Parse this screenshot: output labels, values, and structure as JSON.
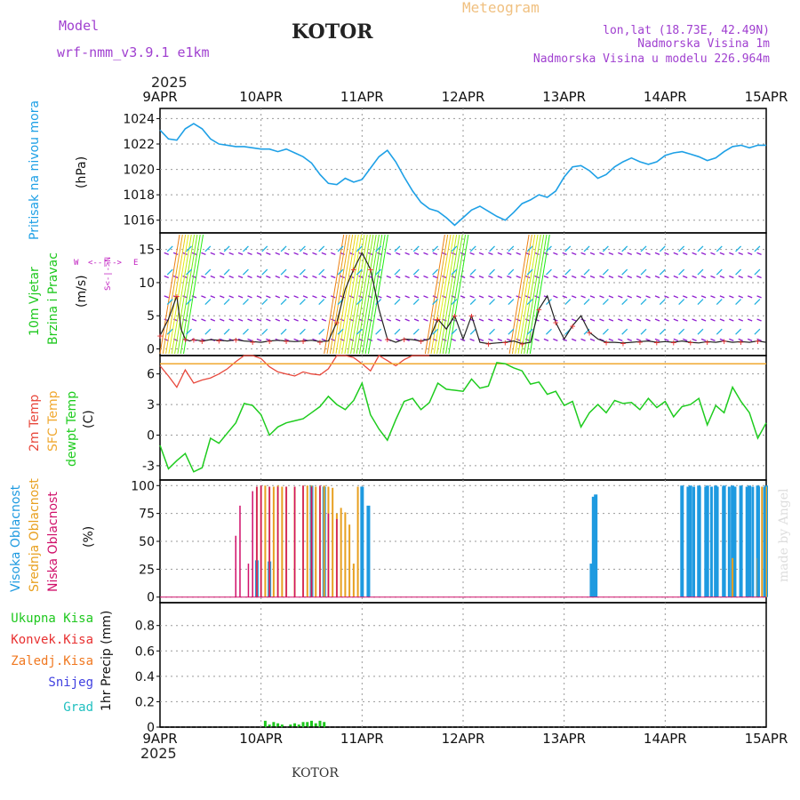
{
  "header": {
    "model_label": "Model",
    "model_name": "wrf-nmm_v3.9.1  e1km",
    "station": "KOTOR",
    "product": "Meteogram",
    "coords": "lon,lat (18.73E, 42.49N)",
    "elevation": "Nadmorska Visina 1m",
    "model_elevation": "Nadmorska Visina u modelu 226.964m",
    "footer_station": "KOTOR",
    "credit": "made by Angel",
    "year": "2025"
  },
  "colors": {
    "pressure": "#1ea0e6",
    "temp2m": "#e8483c",
    "sfc_temp": "#f0a830",
    "dewpt": "#1ecc1e",
    "high_cloud": "#1e9ae0",
    "mid_cloud": "#e8a020",
    "low_cloud": "#d0106a",
    "total_precip": "#1ec81e",
    "conv_precip": "#e83030",
    "frozen_precip": "#f07820",
    "snow": "#4040e0",
    "graupel": "#20c0c0",
    "wind_axis_label": "#c020c0",
    "model_text": "#a040d0",
    "meteogram_text": "#f0c080"
  },
  "time_axis": {
    "top_labels": [
      "9APR",
      "10APR",
      "11APR",
      "12APR",
      "13APR",
      "14APR",
      "15APR"
    ],
    "bottom_labels": [
      "9APR",
      "10APR",
      "11APR",
      "12APR",
      "13APR",
      "14APR",
      "15APR"
    ]
  },
  "panels": {
    "pressure": {
      "title": "Pritisak na nivou mora",
      "unit": "(hPa)"
    },
    "wind": {
      "title1": "10m Vjetar",
      "title2": "Brzina i Pravac",
      "unit": "(m/s)",
      "compass_w": "W",
      "compass_e": "E",
      "compass_ns": "S<-|->N"
    },
    "temp": {
      "title1": "2m Temp",
      "title2": "SFC Temp",
      "title3": "dewpt Temp",
      "unit": "(C)"
    },
    "cloud": {
      "title1": "Visoka Oblacnost",
      "title2": "Srednja Oblacnost",
      "title3": "Niska Oblacnost",
      "unit": "(%)"
    },
    "precip": {
      "legend": [
        "Ukupna Kisa",
        "Konvek.Kisa",
        "Zaledj.Kisa",
        "Snijeg",
        "Grad"
      ],
      "unit": "1hr Precip (mm)"
    }
  },
  "chart_data": [
    {
      "type": "line",
      "name": "pressure",
      "x_unit": "hours since 9APR 00",
      "ylim": [
        1015,
        1024.8
      ],
      "yticks": [
        1016,
        1018,
        1020,
        1022,
        1024
      ],
      "grid": true,
      "series": [
        {
          "name": "Pritisak na nivou mora",
          "x": [
            0,
            2,
            4,
            6,
            8,
            10,
            12,
            14,
            16,
            18,
            20,
            22,
            24,
            26,
            28,
            30,
            32,
            34,
            36,
            38,
            40,
            42,
            44,
            46,
            48,
            50,
            52,
            54,
            56,
            58,
            60,
            62,
            64,
            66,
            68,
            70,
            72,
            74,
            76,
            78,
            80,
            82,
            84,
            86,
            88,
            90,
            92,
            94,
            96,
            98,
            100,
            102,
            104,
            106,
            108,
            110,
            112,
            114,
            116,
            118,
            120,
            122,
            124,
            126,
            128,
            130,
            132,
            134,
            136,
            138,
            140,
            142,
            144
          ],
          "values": [
            1023.1,
            1022.4,
            1022.3,
            1023.2,
            1023.6,
            1023.2,
            1022.4,
            1022.0,
            1021.9,
            1021.8,
            1021.8,
            1021.7,
            1021.6,
            1021.6,
            1021.4,
            1021.6,
            1021.3,
            1021.0,
            1020.5,
            1019.6,
            1018.9,
            1018.8,
            1019.3,
            1019.0,
            1019.2,
            1020.1,
            1021.0,
            1021.5,
            1020.6,
            1019.4,
            1018.3,
            1017.4,
            1016.9,
            1016.7,
            1016.2,
            1015.6,
            1016.2,
            1016.8,
            1017.1,
            1016.7,
            1016.3,
            1016.0,
            1016.6,
            1017.3,
            1017.6,
            1018.0,
            1017.8,
            1018.3,
            1019.4,
            1020.2,
            1020.3,
            1019.9,
            1019.3,
            1019.6,
            1020.2,
            1020.6,
            1020.9,
            1020.6,
            1020.4,
            1020.6,
            1021.1,
            1021.3,
            1021.4,
            1021.2,
            1021.0,
            1020.7,
            1020.9,
            1021.4,
            1021.8,
            1021.9,
            1021.7,
            1021.9,
            1021.9
          ]
        }
      ]
    },
    {
      "type": "line",
      "name": "wind",
      "ylim": [
        -1,
        17.5
      ],
      "yticks": [
        0,
        5,
        10,
        15
      ],
      "grid": true,
      "series": [
        {
          "name": "10m wind speed",
          "x": [
            0,
            2,
            4,
            5,
            6,
            7,
            8,
            9,
            10,
            12,
            14,
            16,
            18,
            20,
            22,
            24,
            26,
            28,
            30,
            32,
            34,
            36,
            38,
            40,
            42,
            44,
            46,
            48,
            50,
            52,
            54,
            56,
            58,
            60,
            62,
            64,
            66,
            68,
            70,
            72,
            74,
            76,
            78,
            80,
            82,
            84,
            86,
            88,
            90,
            92,
            94,
            96,
            98,
            100,
            102,
            104,
            106,
            108,
            110,
            112,
            114,
            116,
            118,
            120,
            122,
            124,
            126,
            128,
            130,
            132,
            134,
            136,
            138,
            140,
            142,
            144
          ],
          "values": [
            2.0,
            4.5,
            8.0,
            3.0,
            1.5,
            1.2,
            1.4,
            1.3,
            1.2,
            1.4,
            1.3,
            1.2,
            1.4,
            1.2,
            1.1,
            1.0,
            1.2,
            1.3,
            1.2,
            1.1,
            1.2,
            1.3,
            1.1,
            1.2,
            4.0,
            9.0,
            12.0,
            14.5,
            12.0,
            6.0,
            1.5,
            1.0,
            1.5,
            1.4,
            1.2,
            1.5,
            4.5,
            3.0,
            5.0,
            1.5,
            5.0,
            1.0,
            0.8,
            0.9,
            1.0,
            1.2,
            0.8,
            1.0,
            6.0,
            8.0,
            4.0,
            1.5,
            3.5,
            5.0,
            2.5,
            1.5,
            1.0,
            1.0,
            0.9,
            1.0,
            1.1,
            1.2,
            1.0,
            1.1,
            1.0,
            1.2,
            1.0,
            0.9,
            1.1,
            1.0,
            1.2,
            1.0,
            1.1,
            1.0,
            1.2,
            1.0
          ]
        }
      ],
      "note": "colored arrow barbs indicate direction"
    },
    {
      "type": "line",
      "name": "temperature",
      "ylim": [
        -4.4,
        7.8
      ],
      "yticks": [
        -3,
        0,
        3,
        6
      ],
      "grid": true,
      "series": [
        {
          "name": "2m Temp",
          "x": [
            0,
            2,
            4,
            6,
            8,
            10,
            12,
            14,
            16,
            18,
            20,
            22,
            24,
            26,
            28,
            30,
            32,
            34,
            36,
            38,
            40,
            42,
            44,
            46,
            48,
            50,
            52,
            54,
            56,
            58,
            60,
            62,
            64
          ],
          "values": [
            6.8,
            5.8,
            4.7,
            6.4,
            5.1,
            5.4,
            5.6,
            6.0,
            6.5,
            7.2,
            8.0,
            7.8,
            7.5,
            6.7,
            6.2,
            6.0,
            5.8,
            6.2,
            6.0,
            5.9,
            6.5,
            7.8,
            8.2,
            7.6,
            7.0,
            6.3,
            7.9,
            7.3,
            6.8,
            7.4,
            7.9,
            8.4,
            8.6
          ]
        },
        {
          "name": "SFC Temp",
          "x": [
            0,
            144
          ],
          "values": [
            7.0,
            7.0
          ]
        },
        {
          "name": "dewpt Temp",
          "x": [
            0,
            2,
            4,
            6,
            8,
            10,
            12,
            14,
            16,
            18,
            20,
            22,
            24,
            26,
            28,
            30,
            32,
            34,
            36,
            38,
            40,
            42,
            44,
            46,
            48,
            50,
            52,
            54,
            56,
            58,
            60,
            62,
            64,
            66,
            68,
            70,
            72,
            74,
            76,
            78,
            80,
            82,
            84,
            86,
            88,
            90,
            92,
            94,
            96,
            98,
            100,
            102,
            104,
            106,
            108,
            110,
            112,
            114,
            116,
            118,
            120,
            122,
            124,
            126,
            128,
            130,
            132,
            134,
            136,
            138,
            140,
            142,
            144
          ],
          "values": [
            -1.0,
            -3.3,
            -2.5,
            -1.8,
            -3.6,
            -3.2,
            -0.3,
            -0.8,
            0.2,
            1.2,
            3.1,
            2.9,
            2.0,
            0.0,
            0.8,
            1.2,
            1.4,
            1.6,
            2.2,
            2.8,
            3.8,
            3.0,
            2.5,
            3.4,
            5.1,
            2.0,
            0.6,
            -0.5,
            1.5,
            3.3,
            3.6,
            2.5,
            3.2,
            5.1,
            4.5,
            4.4,
            4.3,
            5.5,
            4.6,
            4.8,
            7.1,
            7.0,
            6.6,
            6.3,
            5.0,
            5.2,
            4.0,
            4.3,
            2.9,
            3.3,
            0.8,
            2.2,
            3.0,
            2.2,
            3.4,
            3.1,
            3.2,
            2.5,
            3.6,
            2.7,
            3.3,
            1.8,
            2.8,
            3.0,
            3.6,
            1.0,
            2.9,
            2.2,
            4.7,
            3.3,
            2.2,
            -0.3,
            1.2
          ]
        }
      ]
    },
    {
      "type": "bar",
      "name": "cloud_cover",
      "ylim": [
        -5,
        105
      ],
      "yticks": [
        0,
        25,
        50,
        75,
        100
      ],
      "grid": true,
      "series": [
        {
          "name": "Visoka Oblacnost",
          "x": [
            23,
            26,
            36,
            39,
            48,
            49.5,
            102.5,
            103,
            103.5,
            124,
            126,
            128,
            130,
            132,
            134,
            136,
            138,
            140,
            142,
            144
          ],
          "values": [
            33,
            32,
            100,
            99,
            99,
            82,
            30,
            90,
            92,
            100,
            100,
            100,
            100,
            100,
            100,
            100,
            100,
            100,
            100,
            100
          ]
        },
        {
          "name": "Srednja Oblacnost",
          "x": [
            23,
            24,
            25,
            26,
            27,
            28,
            29,
            30,
            32,
            34,
            35,
            36,
            37,
            38,
            39,
            40,
            41,
            42,
            43,
            44,
            45,
            46,
            47,
            136,
            142,
            143,
            144
          ],
          "values": [
            99,
            100,
            100,
            99,
            99,
            100,
            99,
            99,
            99,
            100,
            100,
            100,
            99,
            99,
            100,
            99,
            98,
            75,
            80,
            76,
            65,
            30,
            99,
            35,
            35,
            99,
            99
          ]
        },
        {
          "name": "Niska Oblacnost",
          "x": [
            18,
            19,
            21,
            22,
            23,
            24,
            26,
            28,
            30,
            32,
            34,
            36,
            38,
            40,
            42
          ],
          "values": [
            55,
            82,
            30,
            95,
            99,
            100,
            99,
            99,
            99,
            99,
            100,
            99,
            100,
            75,
            70
          ]
        }
      ]
    },
    {
      "type": "bar",
      "name": "precipitation",
      "ylim": [
        0,
        0.98
      ],
      "yticks": [
        0,
        0.2,
        0.4,
        0.6,
        0.8
      ],
      "grid": true,
      "series": [
        {
          "name": "Ukupna Kisa",
          "x": [
            25,
            26,
            27,
            28,
            29,
            31,
            32,
            33,
            34,
            35,
            36,
            37,
            38,
            39
          ],
          "values": [
            0.05,
            0.02,
            0.04,
            0.03,
            0.02,
            0.02,
            0.03,
            0.02,
            0.04,
            0.04,
            0.05,
            0.03,
            0.05,
            0.04
          ]
        }
      ]
    }
  ]
}
